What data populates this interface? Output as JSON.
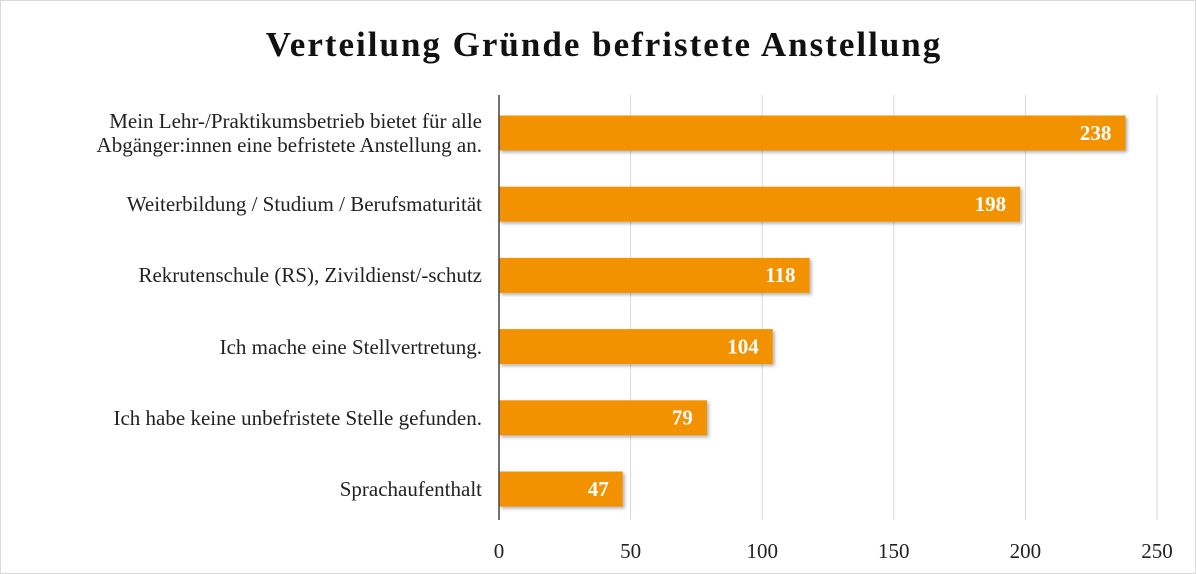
{
  "chart_data": {
    "type": "bar",
    "orientation": "horizontal",
    "title": "Verteilung Gründe befristete Anstellung",
    "categories": [
      "Mein Lehr-/Praktikumsbetrieb bietet für alle Abgänger:innen eine befristete Anstellung an.",
      "Weiterbildung / Studium / Berufsmaturität",
      "Rekrutenschule (RS), Zivildienst/-schutz",
      "Ich mache eine Stellvertretung.",
      "Ich habe keine unbefristete Stelle gefunden.",
      "Sprachaufenthalt"
    ],
    "values": [
      238,
      198,
      118,
      104,
      79,
      47
    ],
    "color": "#f39200",
    "xlim": [
      0,
      250
    ],
    "xticks": [
      0,
      50,
      100,
      150,
      200,
      250
    ],
    "grid": true
  }
}
